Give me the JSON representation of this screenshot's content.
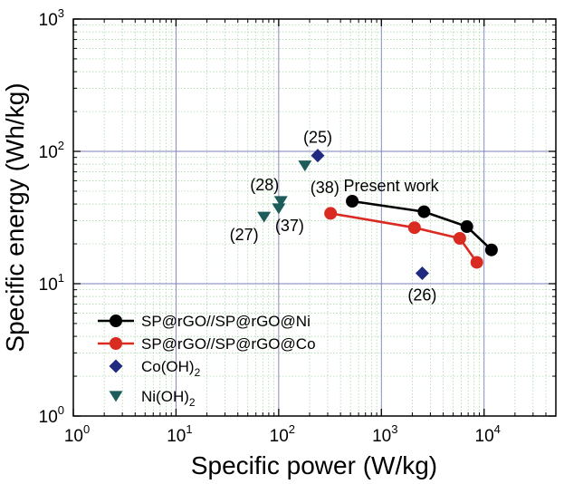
{
  "chart_data": {
    "type": "scatter",
    "title": "",
    "xlabel": "Specific power (W/kg)",
    "ylabel": "Specific energy (Wh/kg)",
    "xscale": "log",
    "yscale": "log",
    "xlim": [
      1,
      50000
    ],
    "ylim": [
      1,
      1000
    ],
    "grid": true,
    "legend": "bottom-left",
    "x_ticks": [
      {
        "value": 1,
        "base": "10",
        "exp": "0"
      },
      {
        "value": 10,
        "base": "10",
        "exp": "1"
      },
      {
        "value": 100,
        "base": "10",
        "exp": "2"
      },
      {
        "value": 1000,
        "base": "10",
        "exp": "3"
      },
      {
        "value": 10000,
        "base": "10",
        "exp": "4"
      }
    ],
    "y_ticks": [
      {
        "value": 1,
        "base": "10",
        "exp": "0"
      },
      {
        "value": 10,
        "base": "10",
        "exp": "1"
      },
      {
        "value": 100,
        "base": "10",
        "exp": "2"
      },
      {
        "value": 1000,
        "base": "10",
        "exp": "3"
      }
    ],
    "series": [
      {
        "name": "SP@rGO//SP@rGO@Ni",
        "kind": "line-circle",
        "color": "#000000",
        "points": [
          [
            520,
            42
          ],
          [
            2600,
            35
          ],
          [
            6800,
            27
          ],
          [
            11800,
            18
          ]
        ]
      },
      {
        "name": "SP@rGO//SP@rGO@Co",
        "kind": "line-circle",
        "color": "#d92b22",
        "points": [
          [
            320,
            34
          ],
          [
            2100,
            26.5
          ],
          [
            5800,
            22
          ],
          [
            8500,
            14.5
          ]
        ]
      },
      {
        "name_base": "Co(OH)",
        "name_sub": "2",
        "kind": "diamond",
        "color": "#1f2a80",
        "points": [
          [
            240,
            93
          ],
          [
            2500,
            12
          ]
        ]
      },
      {
        "name_base": "Ni(OH)",
        "name_sub": "2",
        "kind": "triangle-down",
        "color": "#1d5c5a",
        "points": [
          [
            180,
            78
          ],
          [
            105,
            42
          ],
          [
            100,
            37
          ],
          [
            72,
            32
          ]
        ]
      }
    ],
    "annotations": [
      {
        "text": "(25)",
        "x": 240,
        "y": 93,
        "dx": 0,
        "dy": -14
      },
      {
        "text": "(38)",
        "x": 180,
        "y": 78,
        "dx": 22,
        "dy": 30
      },
      {
        "text": "(28)",
        "x": 105,
        "y": 42,
        "dx": -18,
        "dy": -12
      },
      {
        "text": "(37)",
        "x": 100,
        "y": 37,
        "dx": 12,
        "dy": 25
      },
      {
        "text": "(27)",
        "x": 72,
        "y": 32,
        "dx": -22,
        "dy": 26
      },
      {
        "text": "(26)",
        "x": 2500,
        "y": 12,
        "dx": 0,
        "dy": 30
      },
      {
        "text": "Present work",
        "x": 520,
        "y": 42,
        "dx": 43,
        "dy": -11
      }
    ]
  }
}
